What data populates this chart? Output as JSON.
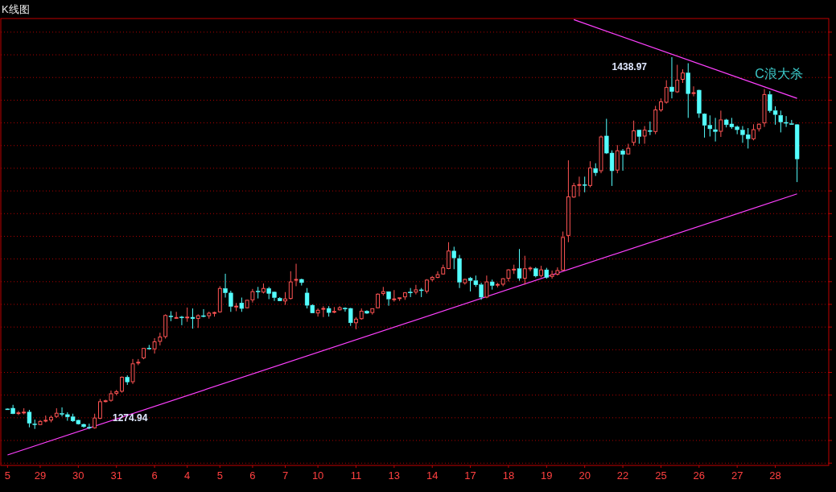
{
  "chart_data": {
    "type": "candlestick",
    "title": "K线图",
    "categories": [
      "5",
      null,
      null,
      null,
      null,
      null,
      "29",
      null,
      null,
      null,
      null,
      null,
      null,
      "30",
      null,
      null,
      null,
      null,
      null,
      null,
      "31",
      null,
      null,
      null,
      null,
      null,
      null,
      "6",
      null,
      null,
      null,
      null,
      null,
      "4",
      null,
      null,
      null,
      null,
      null,
      "5",
      null,
      null,
      null,
      null,
      null,
      "6",
      null,
      null,
      null,
      null,
      null,
      "7",
      null,
      null,
      null,
      null,
      null,
      "10",
      null,
      null,
      null,
      null,
      null,
      null,
      "11",
      null,
      null,
      null,
      null,
      null,
      null,
      "13",
      null,
      null,
      null,
      null,
      null,
      null,
      "14",
      null,
      null,
      null,
      null,
      null,
      null,
      "17",
      null,
      null,
      null,
      null,
      null,
      null,
      "18",
      null,
      null,
      null,
      null,
      null,
      null,
      "19",
      null,
      null,
      null,
      null,
      null,
      null,
      "20",
      null,
      null,
      null,
      null,
      null,
      null,
      "22",
      null,
      null,
      null,
      null,
      null,
      null,
      "25",
      null,
      null,
      null,
      null,
      null,
      null,
      "26",
      null,
      null,
      null,
      null,
      null,
      null,
      "27",
      null,
      null,
      null,
      null,
      null,
      null,
      "28",
      null,
      null,
      null,
      null
    ],
    "ohlc": [
      [
        1283.9,
        1284.1,
        1283.7,
        1283.9
      ],
      [
        1284.2,
        1285.7,
        1281.6,
        1281.8
      ],
      [
        1282.0,
        1283.0,
        1281.2,
        1282.2
      ],
      [
        1282.3,
        1284.2,
        1281.5,
        1282.5
      ],
      [
        1282.5,
        1283.5,
        1275.8,
        1277.6
      ],
      [
        1277.3,
        1279.2,
        1275.1,
        1277.1
      ],
      [
        1277.0,
        1279.0,
        1276.8,
        1278.4
      ],
      [
        1278.6,
        1281.0,
        1278.0,
        1278.9
      ],
      [
        1279.0,
        1281.0,
        1278.0,
        1280.2
      ],
      [
        1280.6,
        1284.2,
        1280.0,
        1282.0
      ],
      [
        1281.9,
        1284.6,
        1280.6,
        1281.7
      ],
      [
        1281.4,
        1282.4,
        1278.7,
        1280.4
      ],
      [
        1280.4,
        1281.8,
        1278.2,
        1278.6
      ],
      [
        1278.9,
        1279.1,
        1277.0,
        1277.3
      ],
      [
        1277.1,
        1277.4,
        1275.6,
        1276.1
      ],
      [
        1275.9,
        1277.4,
        1274.94,
        1275.8
      ],
      [
        1275.6,
        1281.8,
        1275.2,
        1279.9
      ],
      [
        1279.8,
        1288.3,
        1279.4,
        1287.1
      ],
      [
        1287.3,
        1288.0,
        1286.8,
        1287.5
      ],
      [
        1287.7,
        1292.0,
        1287.1,
        1290.6
      ],
      [
        1290.8,
        1292.3,
        1289.9,
        1291.5
      ],
      [
        1291.7,
        1298.2,
        1291.1,
        1297.9
      ],
      [
        1297.9,
        1298.7,
        1294.5,
        1295.8
      ],
      [
        1295.9,
        1305.9,
        1294.9,
        1303.8
      ],
      [
        1304.3,
        1305.9,
        1303.2,
        1304.5
      ],
      [
        1306.4,
        1310.8,
        1305.8,
        1310.6
      ],
      [
        1310.7,
        1312.1,
        1310.1,
        1310.5
      ],
      [
        1310.4,
        1315.1,
        1308.3,
        1313.5
      ],
      [
        1313.7,
        1317.5,
        1311.9,
        1315.6
      ],
      [
        1315.8,
        1325.6,
        1314.9,
        1325.1
      ],
      [
        1324.9,
        1327.0,
        1322.6,
        1324.7
      ],
      [
        1324.0,
        1326.7,
        1323.7,
        1324.2
      ],
      [
        1324.4,
        1324.9,
        1320.8,
        1324.3
      ],
      [
        1324.2,
        1328.6,
        1322.3,
        1324.4
      ],
      [
        1324.3,
        1328.2,
        1319.3,
        1323.7
      ],
      [
        1323.8,
        1325.6,
        1319.6,
        1325.0
      ],
      [
        1325.0,
        1327.9,
        1324.3,
        1324.9
      ],
      [
        1325.0,
        1326.8,
        1323.7,
        1326.1
      ],
      [
        1326.2,
        1326.8,
        1324.6,
        1326.4
      ],
      [
        1326.7,
        1338.0,
        1326.3,
        1337.0
      ],
      [
        1337.0,
        1343.5,
        1333.0,
        1335.1
      ],
      [
        1335.0,
        1336.0,
        1326.7,
        1329.1
      ],
      [
        1329.0,
        1330.6,
        1327.0,
        1329.2
      ],
      [
        1330.6,
        1333.0,
        1326.7,
        1328.2
      ],
      [
        1328.5,
        1332.0,
        1328.2,
        1331.8
      ],
      [
        1332.0,
        1336.8,
        1330.8,
        1335.6
      ],
      [
        1335.8,
        1337.7,
        1332.6,
        1335.6
      ],
      [
        1335.4,
        1339.2,
        1334.8,
        1337.0
      ],
      [
        1337.0,
        1337.7,
        1332.3,
        1334.8
      ],
      [
        1335.4,
        1335.6,
        1331.5,
        1333.0
      ],
      [
        1332.7,
        1333.2,
        1331.4,
        1331.5
      ],
      [
        1331.5,
        1335.4,
        1329.8,
        1332.4
      ],
      [
        1332.6,
        1344.6,
        1332.1,
        1339.9
      ],
      [
        1340.8,
        1347.9,
        1338.0,
        1341.0
      ],
      [
        1341.0,
        1341.3,
        1338.3,
        1339.6
      ],
      [
        1335.0,
        1337.2,
        1328.2,
        1329.6
      ],
      [
        1329.6,
        1330.0,
        1326.2,
        1326.2
      ],
      [
        1326.2,
        1328.2,
        1324.6,
        1327.4
      ],
      [
        1328.0,
        1329.2,
        1324.4,
        1328.2
      ],
      [
        1328.2,
        1329.2,
        1324.6,
        1326.4
      ],
      [
        1326.7,
        1328.8,
        1326.1,
        1326.9
      ],
      [
        1327.6,
        1329.2,
        1327.3,
        1328.5
      ],
      [
        1328.3,
        1328.7,
        1326.8,
        1328.2
      ],
      [
        1328.2,
        1328.4,
        1320.5,
        1321.9
      ],
      [
        1321.9,
        1324.4,
        1319.0,
        1323.5
      ],
      [
        1323.7,
        1328.2,
        1323.2,
        1327.0
      ],
      [
        1327.0,
        1327.4,
        1325.8,
        1326.1
      ],
      [
        1326.4,
        1328.2,
        1325.5,
        1328.1
      ],
      [
        1328.5,
        1334.8,
        1328.2,
        1334.5
      ],
      [
        1334.8,
        1337.7,
        1333.9,
        1335.6
      ],
      [
        1335.6,
        1335.7,
        1329.4,
        1332.4
      ],
      [
        1332.2,
        1336.3,
        1331.2,
        1332.4
      ],
      [
        1332.7,
        1332.9,
        1331.5,
        1332.9
      ],
      [
        1333.3,
        1335.4,
        1332.0,
        1335.1
      ],
      [
        1335.4,
        1337.2,
        1333.2,
        1335.3
      ],
      [
        1335.4,
        1338.6,
        1334.4,
        1336.4
      ],
      [
        1336.4,
        1337.2,
        1333.2,
        1336.2
      ],
      [
        1335.8,
        1341.1,
        1334.8,
        1340.7
      ],
      [
        1341.0,
        1342.5,
        1340.1,
        1341.9
      ],
      [
        1341.9,
        1344.6,
        1341.5,
        1343.1
      ],
      [
        1343.4,
        1347.5,
        1343.1,
        1346.1
      ],
      [
        1345.8,
        1357.4,
        1345.5,
        1353.5
      ],
      [
        1353.5,
        1355.4,
        1345.5,
        1350.5
      ],
      [
        1350.2,
        1351.8,
        1337.2,
        1339.8
      ],
      [
        1339.5,
        1341.3,
        1338.7,
        1341.0
      ],
      [
        1341.5,
        1342.1,
        1335.7,
        1340.5
      ],
      [
        1340.4,
        1342.7,
        1337.7,
        1338.6
      ],
      [
        1338.6,
        1339.5,
        1332.0,
        1333.2
      ],
      [
        1333.2,
        1342.7,
        1332.7,
        1339.9
      ],
      [
        1339.9,
        1340.9,
        1336.5,
        1338.3
      ],
      [
        1338.6,
        1339.5,
        1337.5,
        1338.8
      ],
      [
        1338.9,
        1341.5,
        1338.0,
        1341.3
      ],
      [
        1341.5,
        1345.5,
        1340.1,
        1345.2
      ],
      [
        1345.3,
        1347.5,
        1343.4,
        1345.5
      ],
      [
        1345.7,
        1354.4,
        1340.4,
        1341.5
      ],
      [
        1341.5,
        1351.4,
        1338.7,
        1345.7
      ],
      [
        1345.8,
        1346.7,
        1344.6,
        1346.0
      ],
      [
        1345.7,
        1346.4,
        1341.9,
        1342.5
      ],
      [
        1342.7,
        1347.0,
        1341.9,
        1345.2
      ],
      [
        1345.2,
        1346.1,
        1341.3,
        1341.9
      ],
      [
        1342.3,
        1344.9,
        1341.3,
        1343.1
      ],
      [
        1343.3,
        1346.3,
        1342.7,
        1344.9
      ],
      [
        1345.1,
        1362.1,
        1344.9,
        1359.5
      ],
      [
        1360.4,
        1393.5,
        1357.4,
        1377.4
      ],
      [
        1377.3,
        1383.6,
        1377.0,
        1382.3
      ],
      [
        1382.6,
        1386.3,
        1377.6,
        1382.8
      ],
      [
        1382.8,
        1386.3,
        1379.4,
        1382.6
      ],
      [
        1382.4,
        1393.1,
        1381.6,
        1390.1
      ],
      [
        1389.9,
        1392.2,
        1386.6,
        1388.0
      ],
      [
        1388.9,
        1404.4,
        1387.8,
        1403.8
      ],
      [
        1404.2,
        1411.8,
        1396.3,
        1396.7
      ],
      [
        1396.7,
        1397.9,
        1382.2,
        1388.9
      ],
      [
        1389.2,
        1400.2,
        1387.8,
        1397.7
      ],
      [
        1397.7,
        1398.5,
        1388.9,
        1396.1
      ],
      [
        1396.3,
        1400.8,
        1396.1,
        1398.8
      ],
      [
        1401.4,
        1411.0,
        1399.9,
        1406.5
      ],
      [
        1406.8,
        1407.0,
        1400.8,
        1404.0
      ],
      [
        1404.2,
        1408.6,
        1400.8,
        1406.8
      ],
      [
        1406.6,
        1410.6,
        1404.6,
        1406.4
      ],
      [
        1406.2,
        1417.5,
        1405.0,
        1415.7
      ],
      [
        1415.7,
        1420.8,
        1414.9,
        1419.3
      ],
      [
        1419.1,
        1428.8,
        1418.5,
        1425.6
      ],
      [
        1425.8,
        1438.97,
        1420.8,
        1423.8
      ],
      [
        1423.7,
        1435.6,
        1423.2,
        1428.8
      ],
      [
        1429.2,
        1433.6,
        1427.6,
        1432.0
      ],
      [
        1432.0,
        1436.3,
        1412.2,
        1422.9
      ],
      [
        1423.1,
        1426.1,
        1421.7,
        1423.3
      ],
      [
        1424.4,
        1424.6,
        1412.2,
        1414.2
      ],
      [
        1413.9,
        1414.2,
        1403.5,
        1408.9
      ],
      [
        1408.9,
        1413.3,
        1404.0,
        1407.4
      ],
      [
        1407.0,
        1412.2,
        1401.8,
        1406.2
      ],
      [
        1406.3,
        1415.4,
        1403.8,
        1411.3
      ],
      [
        1411.3,
        1411.8,
        1408.0,
        1409.2
      ],
      [
        1409.5,
        1412.2,
        1407.4,
        1408.2
      ],
      [
        1408.2,
        1408.8,
        1405.0,
        1407.0
      ],
      [
        1406.8,
        1408.6,
        1401.2,
        1404.8
      ],
      [
        1404.8,
        1407.7,
        1398.7,
        1403.0
      ],
      [
        1403.0,
        1409.4,
        1402.3,
        1407.0
      ],
      [
        1407.4,
        1409.8,
        1406.2,
        1409.4
      ],
      [
        1410.0,
        1424.9,
        1408.2,
        1422.5
      ],
      [
        1422.5,
        1424.0,
        1414.5,
        1415.4
      ],
      [
        1415.4,
        1417.3,
        1409.2,
        1413.7
      ],
      [
        1413.3,
        1415.4,
        1405.8,
        1410.4
      ],
      [
        1410.2,
        1413.0,
        1408.2,
        1410.0
      ],
      [
        1409.6,
        1411.3,
        1409.4,
        1409.5
      ],
      [
        1409.2,
        1409.4,
        1383.9,
        1394.1
      ]
    ],
    "colors": [
      "#54ffff",
      "#54ffff",
      "#ff5454",
      "#ff5454",
      "#54ffff",
      "#54ffff",
      "#ff5454",
      "#ff5454",
      "#ff5454",
      "#ff5454",
      "#54ffff",
      "#54ffff",
      "#54ffff",
      "#54ffff",
      "#54ffff",
      "#54ffff",
      "#ff5454",
      "#ff5454",
      "#ff5454",
      "#ff5454",
      "#ff5454",
      "#ff5454",
      "#54ffff",
      "#ff5454",
      "#ff5454",
      "#ff5454",
      "#54ffff",
      "#ff5454",
      "#ff5454",
      "#ff5454",
      "#54ffff",
      "#ff5454",
      "#54ffff",
      "#ff5454",
      "#54ffff",
      "#ff5454",
      "#54ffff",
      "#ff5454",
      "#ff5454",
      "#ff5454",
      "#54ffff",
      "#54ffff",
      "#ff5454",
      "#54ffff",
      "#ff5454",
      "#ff5454",
      "#54ffff",
      "#ff5454",
      "#54ffff",
      "#54ffff",
      "#54ffff",
      "#ff5454",
      "#ff5454",
      "#ff5454",
      "#54ffff",
      "#54ffff",
      "#54ffff",
      "#ff5454",
      "#ff5454",
      "#54ffff",
      "#ff5454",
      "#ff5454",
      "#54ffff",
      "#54ffff",
      "#ff5454",
      "#ff5454",
      "#54ffff",
      "#ff5454",
      "#ff5454",
      "#ff5454",
      "#54ffff",
      "#ff5454",
      "#ff5454",
      "#ff5454",
      "#54ffff",
      "#ff5454",
      "#54ffff",
      "#ff5454",
      "#ff5454",
      "#ff5454",
      "#ff5454",
      "#ff5454",
      "#54ffff",
      "#54ffff",
      "#ff5454",
      "#54ffff",
      "#54ffff",
      "#54ffff",
      "#ff5454",
      "#54ffff",
      "#ff5454",
      "#ff5454",
      "#ff5454",
      "#ff5454",
      "#54ffff",
      "#ff5454",
      "#ff5454",
      "#54ffff",
      "#ff5454",
      "#54ffff",
      "#ff5454",
      "#ff5454",
      "#ff5454",
      "#ff5454",
      "#ff5454",
      "#ff5454",
      "#54ffff",
      "#ff5454",
      "#54ffff",
      "#ff5454",
      "#54ffff",
      "#54ffff",
      "#ff5454",
      "#54ffff",
      "#ff5454",
      "#ff5454",
      "#54ffff",
      "#ff5454",
      "#54ffff",
      "#ff5454",
      "#ff5454",
      "#ff5454",
      "#54ffff",
      "#ff5454",
      "#ff5454",
      "#54ffff",
      "#ff5454",
      "#54ffff",
      "#54ffff",
      "#54ffff",
      "#54ffff",
      "#ff5454",
      "#54ffff",
      "#54ffff",
      "#54ffff",
      "#54ffff",
      "#54ffff",
      "#ff5454",
      "#ff5454",
      "#ff5454",
      "#54ffff",
      "#54ffff",
      "#54ffff",
      "#54ffff",
      "#54ffff",
      "#54ffff"
    ],
    "series": [
      {
        "type": "line",
        "color": "#ff40ff",
        "values": [
          1263.6,
          null,
          null,
          null,
          null,
          null,
          null,
          null,
          null,
          null,
          null,
          null,
          null,
          null,
          null,
          null,
          null,
          null,
          null,
          null,
          null,
          null,
          null,
          null,
          null,
          null,
          null,
          null,
          null,
          null,
          null,
          null,
          null,
          null,
          null,
          null,
          null,
          null,
          null,
          null,
          null,
          null,
          null,
          null,
          null,
          null,
          null,
          null,
          null,
          null,
          null,
          null,
          null,
          null,
          null,
          null,
          null,
          null,
          null,
          null,
          null,
          null,
          null,
          null,
          null,
          null,
          null,
          null,
          null,
          null,
          null,
          null,
          null,
          null,
          null,
          null,
          null,
          null,
          null,
          null,
          null,
          null,
          null,
          null,
          null,
          null,
          null,
          null,
          null,
          null,
          null,
          null,
          null,
          null,
          null,
          null,
          null,
          null,
          null,
          null,
          null,
          null,
          null,
          null,
          null,
          null,
          null,
          null,
          null,
          null,
          null,
          null,
          null,
          null,
          null,
          null,
          null,
          null,
          null,
          null,
          null,
          null,
          null,
          null,
          null,
          null,
          null,
          null,
          null,
          null,
          null,
          null,
          null,
          null,
          null,
          null,
          null,
          null,
          null,
          null,
          null,
          null,
          null,
          null,
          null,
          1378.7
        ]
      },
      {
        "type": "line",
        "color": "#ff40ff",
        "values": [
          null,
          null,
          null,
          null,
          null,
          null,
          null,
          null,
          null,
          null,
          null,
          null,
          null,
          null,
          null,
          null,
          null,
          null,
          null,
          null,
          null,
          null,
          null,
          null,
          null,
          null,
          null,
          null,
          null,
          null,
          null,
          null,
          null,
          null,
          null,
          null,
          null,
          null,
          null,
          null,
          null,
          null,
          null,
          null,
          null,
          null,
          null,
          null,
          null,
          null,
          null,
          null,
          null,
          null,
          null,
          null,
          null,
          null,
          null,
          null,
          null,
          null,
          null,
          null,
          null,
          null,
          null,
          null,
          null,
          null,
          null,
          null,
          null,
          null,
          null,
          null,
          null,
          null,
          null,
          null,
          null,
          null,
          null,
          null,
          null,
          null,
          null,
          null,
          null,
          null,
          null,
          null,
          null,
          null,
          null,
          null,
          null,
          null,
          null,
          null,
          null,
          null,
          null,
          null,
          1455.5,
          null,
          null,
          null,
          null,
          null,
          null,
          null,
          null,
          null,
          null,
          null,
          null,
          null,
          null,
          null,
          null,
          null,
          null,
          null,
          null,
          null,
          null,
          null,
          null,
          null,
          null,
          null,
          null,
          null,
          null,
          null,
          null,
          null,
          null,
          null,
          null,
          null,
          null,
          null,
          null,
          1420.8
        ]
      }
    ],
    "ylim": [
      1259,
      1456
    ],
    "yticks": [
      {
        "value": 1260,
        "label": null
      },
      {
        "value": 1270,
        "label": null
      },
      {
        "value": 1280,
        "label": null
      },
      {
        "value": 1290,
        "label": null
      },
      {
        "value": 1300,
        "label": null
      },
      {
        "value": 1310,
        "label": null
      },
      {
        "value": 1320,
        "label": null
      },
      {
        "value": 1330,
        "label": null
      },
      {
        "value": 1340,
        "label": null
      },
      {
        "value": 1350,
        "label": null
      },
      {
        "value": 1360,
        "label": null
      },
      {
        "value": 1370,
        "label": null
      },
      {
        "value": 1380,
        "label": null
      },
      {
        "value": 1390,
        "label": null
      },
      {
        "value": 1400,
        "label": null
      },
      {
        "value": 1410,
        "label": null
      },
      {
        "value": 1420,
        "label": null
      },
      {
        "value": 1430,
        "label": null
      },
      {
        "value": 1440,
        "label": null
      },
      {
        "value": 1450,
        "label": null
      }
    ],
    "grid": "y",
    "tick_labels": "x",
    "annotations": [
      "1438.97",
      "1274.94",
      "C浪大杀"
    ]
  }
}
